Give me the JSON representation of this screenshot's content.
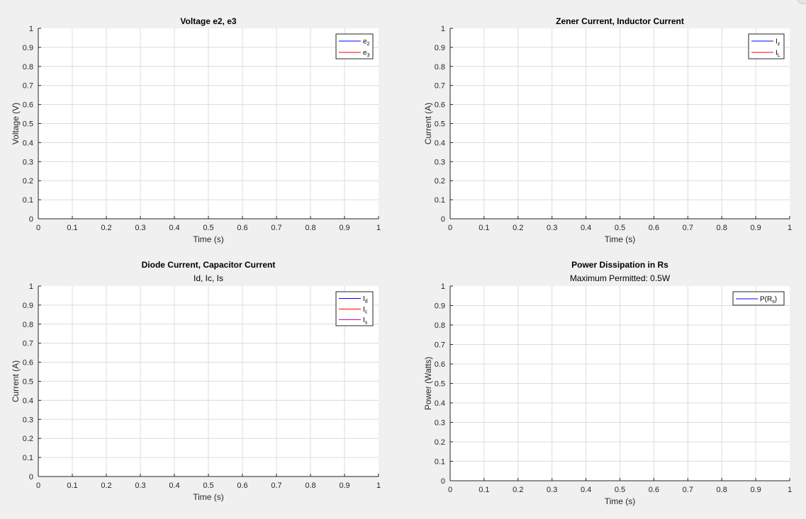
{
  "chart_data": [
    {
      "type": "line",
      "title": "Voltage e2, e3",
      "subtitle": "",
      "xlabel": "Time (s)",
      "ylabel": "Voltage (V)",
      "xlim": [
        0,
        1
      ],
      "ylim": [
        0,
        1
      ],
      "xticks": [
        "0",
        "0.1",
        "0.2",
        "0.3",
        "0.4",
        "0.5",
        "0.6",
        "0.7",
        "0.8",
        "0.9",
        "1"
      ],
      "yticks": [
        "0",
        "0.1",
        "0.2",
        "0.3",
        "0.4",
        "0.5",
        "0.6",
        "0.7",
        "0.8",
        "0.9",
        "1"
      ],
      "grid": true,
      "legend_position": "top-right",
      "series": [
        {
          "name": "e",
          "sub": "2",
          "color": "#0000ff",
          "x": [],
          "values": []
        },
        {
          "name": "e",
          "sub": "3",
          "color": "#ff0000",
          "x": [],
          "values": []
        }
      ]
    },
    {
      "type": "line",
      "title": "Zener Current, Inductor Current",
      "subtitle": "",
      "xlabel": "Time (s)",
      "ylabel": "Current (A)",
      "xlim": [
        0,
        1
      ],
      "ylim": [
        0,
        1
      ],
      "xticks": [
        "0",
        "0.1",
        "0.2",
        "0.3",
        "0.4",
        "0.5",
        "0.6",
        "0.7",
        "0.8",
        "0.9",
        "1"
      ],
      "yticks": [
        "0",
        "0.1",
        "0.2",
        "0.3",
        "0.4",
        "0.5",
        "0.6",
        "0.7",
        "0.8",
        "0.9",
        "1"
      ],
      "grid": true,
      "legend_position": "top-right",
      "series": [
        {
          "name": "I",
          "sub": "z",
          "color": "#0000ff",
          "x": [],
          "values": []
        },
        {
          "name": "I",
          "sub": "L",
          "color": "#ff0000",
          "x": [],
          "values": []
        }
      ]
    },
    {
      "type": "line",
      "title": "Diode Current, Capacitor Current",
      "subtitle": "Id, Ic, Is",
      "xlabel": "Time (s)",
      "ylabel": "Current (A)",
      "xlim": [
        0,
        1
      ],
      "ylim": [
        0,
        1
      ],
      "xticks": [
        "0",
        "0.1",
        "0.2",
        "0.3",
        "0.4",
        "0.5",
        "0.6",
        "0.7",
        "0.8",
        "0.9",
        "1"
      ],
      "yticks": [
        "0",
        "0.1",
        "0.2",
        "0.3",
        "0.4",
        "0.5",
        "0.6",
        "0.7",
        "0.8",
        "0.9",
        "1"
      ],
      "grid": true,
      "legend_position": "top-right",
      "series": [
        {
          "name": "I",
          "sub": "d",
          "color": "#0000ff",
          "x": [],
          "values": []
        },
        {
          "name": "I",
          "sub": "c",
          "color": "#ff0000",
          "x": [],
          "values": []
        },
        {
          "name": "I",
          "sub": "s",
          "color": "#cc00cc",
          "x": [],
          "values": []
        }
      ]
    },
    {
      "type": "line",
      "title": "Power Dissipation in Rs",
      "subtitle": "Maximum Permitted: 0.5W",
      "xlabel": "Time (s)",
      "ylabel": "Power (Watts)",
      "xlim": [
        0,
        1
      ],
      "ylim": [
        0,
        1
      ],
      "xticks": [
        "0",
        "0.1",
        "0.2",
        "0.3",
        "0.4",
        "0.5",
        "0.6",
        "0.7",
        "0.8",
        "0.9",
        "1"
      ],
      "yticks": [
        "0",
        "0.1",
        "0.2",
        "0.3",
        "0.4",
        "0.5",
        "0.6",
        "0.7",
        "0.8",
        "0.9",
        "1"
      ],
      "grid": true,
      "legend_position": "top-right",
      "series": [
        {
          "name": "P(R",
          "sub": "s",
          "suffix": ")",
          "color": "#0000ff",
          "x": [],
          "values": []
        }
      ]
    }
  ]
}
